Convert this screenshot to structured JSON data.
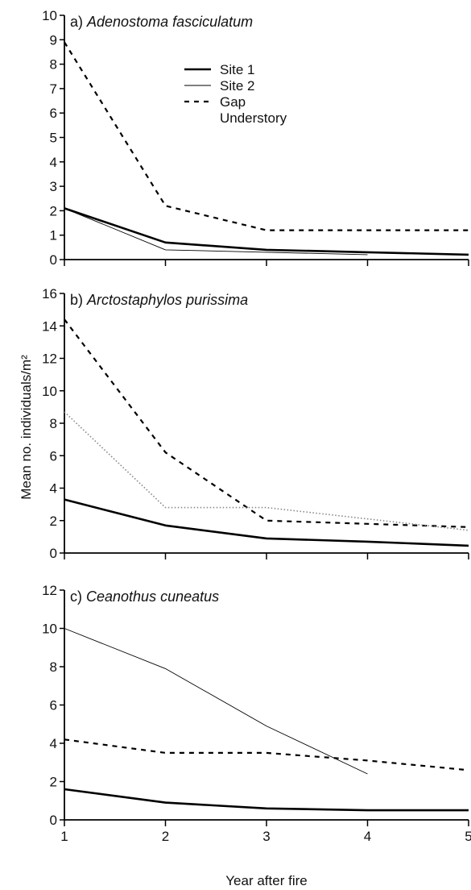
{
  "chart_data": {
    "type": "line",
    "xlabel": "Year after fire",
    "ylabel": "Mean no. individuals/m²",
    "x_ticks": [
      "1",
      "2",
      "3",
      "4",
      "5"
    ],
    "xlim": [
      1,
      5
    ],
    "legend": {
      "placement": "top-center of panel a",
      "entries": [
        {
          "label": "Site 1",
          "style": "thick-solid"
        },
        {
          "label": "Site 2",
          "style": "thin-solid"
        },
        {
          "label": "Gap",
          "style": "dashed"
        },
        {
          "label": "Understory",
          "style": "dotted"
        }
      ]
    },
    "panels": [
      {
        "title_prefix": "a) ",
        "title_species": "Adenostoma fasciculatum",
        "ylim": [
          0,
          10
        ],
        "y_ticks": [
          0,
          1,
          2,
          3,
          4,
          5,
          6,
          7,
          8,
          9,
          10
        ],
        "series": [
          {
            "name": "Site 1",
            "style": "thick-solid",
            "x": [
              1,
              2,
              3,
              4,
              5
            ],
            "y": [
              2.1,
              0.7,
              0.4,
              0.3,
              0.2
            ]
          },
          {
            "name": "Site 2",
            "style": "thin-solid",
            "x": [
              1,
              2,
              3,
              4
            ],
            "y": [
              2.1,
              0.4,
              0.3,
              0.2
            ]
          },
          {
            "name": "Gap",
            "style": "dashed",
            "x": [
              1,
              2,
              3,
              4,
              5
            ],
            "y": [
              8.9,
              2.2,
              1.2,
              1.2,
              1.2
            ]
          }
        ]
      },
      {
        "title_prefix": "b) ",
        "title_species": "Arctostaphylos purissima",
        "ylim": [
          0,
          16
        ],
        "y_ticks": [
          0,
          2,
          4,
          6,
          8,
          10,
          12,
          14,
          16
        ],
        "series": [
          {
            "name": "Site 1",
            "style": "thick-solid",
            "x": [
              1,
              2,
              3,
              4,
              5
            ],
            "y": [
              3.3,
              1.7,
              0.9,
              0.7,
              0.45
            ]
          },
          {
            "name": "Gap",
            "style": "dashed",
            "x": [
              1,
              2,
              3,
              4,
              5
            ],
            "y": [
              14.4,
              6.2,
              2.0,
              1.8,
              1.6
            ]
          },
          {
            "name": "Understory",
            "style": "dotted",
            "x": [
              1,
              2,
              3,
              4,
              5
            ],
            "y": [
              8.7,
              2.8,
              2.8,
              2.1,
              1.4
            ]
          }
        ]
      },
      {
        "title_prefix": "c) ",
        "title_species": "Ceanothus cuneatus",
        "ylim": [
          0,
          12
        ],
        "y_ticks": [
          0,
          2,
          4,
          6,
          8,
          10,
          12
        ],
        "series": [
          {
            "name": "Site 1",
            "style": "thick-solid",
            "x": [
              1,
              2,
              3,
              4,
              5
            ],
            "y": [
              1.6,
              0.9,
              0.6,
              0.5,
              0.5
            ]
          },
          {
            "name": "Site 2",
            "style": "thin-solid",
            "x": [
              1,
              2,
              3,
              4
            ],
            "y": [
              10.0,
              7.9,
              4.9,
              2.4
            ]
          },
          {
            "name": "Gap",
            "style": "dashed",
            "x": [
              1,
              2,
              3,
              4,
              5
            ],
            "y": [
              4.2,
              3.5,
              3.5,
              3.1,
              2.6
            ]
          }
        ]
      }
    ]
  }
}
